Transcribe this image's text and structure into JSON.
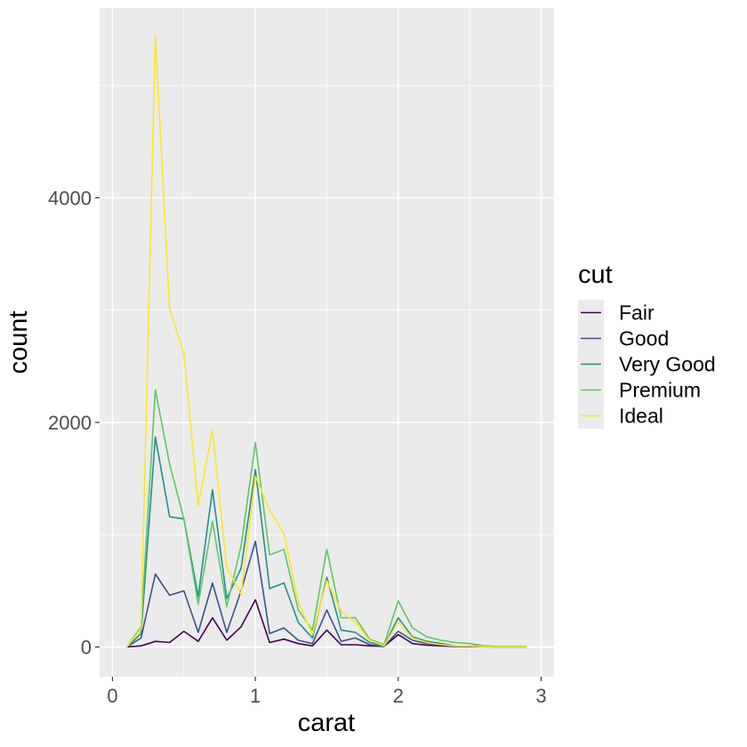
{
  "chart_data": {
    "type": "line",
    "xlabel": "carat",
    "ylabel": "count",
    "xlim": [
      -0.09,
      3.09
    ],
    "ylim": [
      -265,
      5690
    ],
    "x_ticks": [
      0,
      1,
      2,
      3
    ],
    "y_ticks": [
      0,
      2000,
      4000
    ],
    "x_tick_labels": [
      "0",
      "1",
      "2",
      "3"
    ],
    "y_tick_labels": [
      "0",
      "2000",
      "4000"
    ],
    "grid": true,
    "legend": {
      "title": "cut",
      "placement": "right"
    },
    "x": [
      0.1,
      0.2,
      0.3,
      0.4,
      0.5,
      0.6,
      0.7,
      0.8,
      0.9,
      1.0,
      1.1,
      1.2,
      1.3,
      1.4,
      1.5,
      1.6,
      1.7,
      1.8,
      1.9,
      2.0,
      2.1,
      2.2,
      2.3,
      2.4,
      2.5,
      2.6,
      2.7,
      2.8,
      2.9
    ],
    "series": [
      {
        "name": "Fair",
        "color": "#440154",
        "values": [
          0,
          10,
          50,
          40,
          140,
          50,
          260,
          60,
          180,
          420,
          40,
          70,
          30,
          10,
          150,
          20,
          20,
          10,
          5,
          110,
          30,
          15,
          10,
          5,
          5,
          2,
          1,
          1,
          1
        ]
      },
      {
        "name": "Good",
        "color": "#3b528b",
        "values": [
          0,
          80,
          650,
          460,
          500,
          130,
          570,
          130,
          500,
          940,
          120,
          170,
          60,
          30,
          330,
          50,
          80,
          20,
          5,
          140,
          60,
          30,
          20,
          10,
          10,
          5,
          2,
          1,
          1
        ]
      },
      {
        "name": "Very Good",
        "color": "#21908c",
        "values": [
          0,
          120,
          1870,
          1160,
          1140,
          450,
          1400,
          430,
          700,
          1580,
          520,
          570,
          220,
          80,
          620,
          150,
          130,
          40,
          10,
          260,
          90,
          50,
          30,
          10,
          10,
          5,
          2,
          1,
          1
        ]
      },
      {
        "name": "Premium",
        "color": "#5dc863",
        "values": [
          0,
          180,
          2290,
          1630,
          1140,
          380,
          1120,
          360,
          900,
          1820,
          820,
          870,
          330,
          150,
          870,
          260,
          260,
          70,
          20,
          410,
          170,
          90,
          60,
          40,
          30,
          10,
          5,
          5,
          5
        ]
      },
      {
        "name": "Ideal",
        "color": "#fde725",
        "values": [
          0,
          160,
          5440,
          3010,
          2610,
          1260,
          1930,
          710,
          470,
          1520,
          1220,
          1010,
          400,
          110,
          590,
          320,
          220,
          60,
          10,
          220,
          80,
          40,
          20,
          10,
          10,
          2,
          1,
          1,
          1
        ]
      }
    ]
  }
}
